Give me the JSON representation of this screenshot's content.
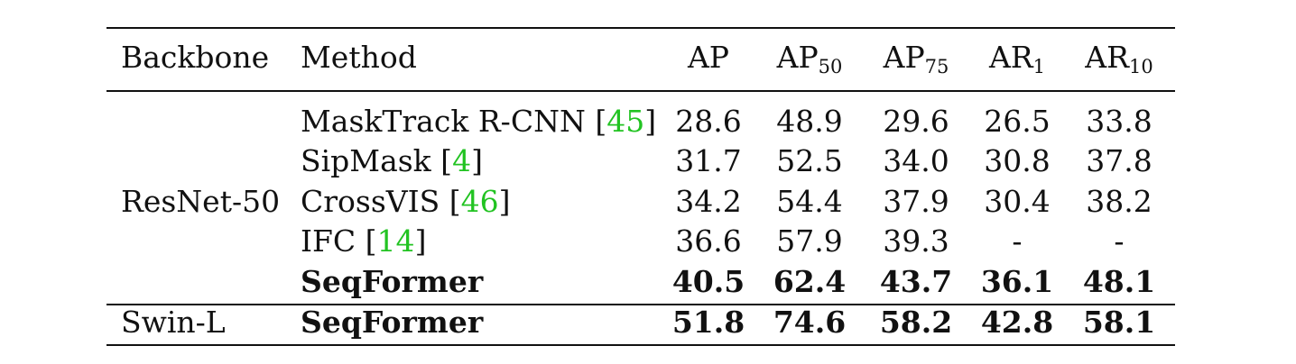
{
  "table": {
    "headers": {
      "backbone": "Backbone",
      "method": "Method",
      "metrics": [
        {
          "base": "AP",
          "sub": ""
        },
        {
          "base": "AP",
          "sub": "50"
        },
        {
          "base": "AP",
          "sub": "75"
        },
        {
          "base": "AR",
          "sub": "1"
        },
        {
          "base": "AR",
          "sub": "10"
        }
      ]
    },
    "groups": [
      {
        "backbone": "ResNet-50",
        "rows": [
          {
            "method": "MaskTrack R-CNN",
            "cite": "45",
            "bold": false,
            "values": [
              "28.6",
              "48.9",
              "29.6",
              "26.5",
              "33.8"
            ]
          },
          {
            "method": "SipMask",
            "cite": "4",
            "bold": false,
            "values": [
              "31.7",
              "52.5",
              "34.0",
              "30.8",
              "37.8"
            ]
          },
          {
            "method": "CrossVIS",
            "cite": "46",
            "bold": false,
            "values": [
              "34.2",
              "54.4",
              "37.9",
              "30.4",
              "38.2"
            ]
          },
          {
            "method": "IFC",
            "cite": "14",
            "bold": false,
            "values": [
              "36.6",
              "57.9",
              "39.3",
              "-",
              "-"
            ]
          },
          {
            "method": "SeqFormer",
            "cite": "",
            "bold": true,
            "values": [
              "40.5",
              "62.4",
              "43.7",
              "36.1",
              "48.1"
            ]
          }
        ]
      },
      {
        "backbone": "Swin-L",
        "rows": [
          {
            "method": "SeqFormer",
            "cite": "",
            "bold": true,
            "values": [
              "51.8",
              "74.6",
              "58.2",
              "42.8",
              "58.1"
            ]
          }
        ]
      }
    ],
    "colors": {
      "citation": "#22c322",
      "text": "#111111"
    }
  }
}
